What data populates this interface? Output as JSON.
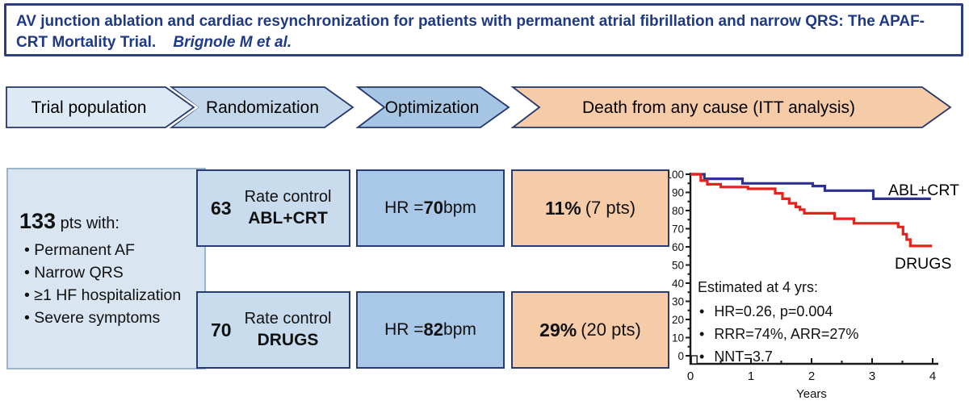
{
  "title": {
    "text": "AV junction ablation and cardiac resynchronization for patients with permanent atrial fibrillation and narrow QRS: The APAF-CRT Mortality Trial.",
    "author": "Brignole M et al."
  },
  "steps": [
    {
      "label": "Trial population"
    },
    {
      "label": "Randomization"
    },
    {
      "label": "Optimization"
    },
    {
      "label": "Death from any cause (ITT analysis)"
    }
  ],
  "population": {
    "count": "133",
    "suffix": " pts with:",
    "bullets": [
      "Permanent AF",
      "Narrow QRS",
      "≥1 HF hospitalization",
      "Severe symptoms"
    ]
  },
  "arms": [
    {
      "n": "63",
      "line1": "Rate control",
      "line2": "ABL+CRT",
      "hr_prefix": "HR = ",
      "hr_value": "70",
      "hr_suffix": " bpm",
      "outcome_pct": "11%",
      "outcome_detail": "(7 pts)"
    },
    {
      "n": "70",
      "line1": "Rate control",
      "line2": "DRUGS",
      "hr_prefix": "HR = ",
      "hr_value": "82",
      "hr_suffix": " bpm",
      "outcome_pct": "29%",
      "outcome_detail": "(20 pts)"
    }
  ],
  "chart_data": {
    "type": "line",
    "subtype": "kaplan-meier-step",
    "title": "Death from any cause (ITT analysis)",
    "xlabel": "Years",
    "ylabel": "",
    "xlim": [
      0,
      4
    ],
    "ylim": [
      0,
      100
    ],
    "x_ticks": [
      0,
      1,
      2,
      3,
      4
    ],
    "x_minor_step": 0.5,
    "y_ticks": [
      0,
      10,
      20,
      30,
      40,
      50,
      60,
      70,
      80,
      90,
      100
    ],
    "y_minor_step": 5,
    "grid": false,
    "legend_position": "inline-labels",
    "series": [
      {
        "name": "ABL+CRT",
        "color": "#2e3192",
        "step_points": [
          [
            0,
            100
          ],
          [
            0.23,
            97.5
          ],
          [
            0.86,
            95
          ],
          [
            2.02,
            93.5
          ],
          [
            2.22,
            91
          ],
          [
            3.02,
            86.5
          ],
          [
            3.97,
            86.5
          ]
        ]
      },
      {
        "name": "DRUGS",
        "color": "#e8211d",
        "step_points": [
          [
            0,
            100
          ],
          [
            0.17,
            96.5
          ],
          [
            0.28,
            94.5
          ],
          [
            0.5,
            93
          ],
          [
            0.95,
            92
          ],
          [
            1.4,
            89.5
          ],
          [
            1.52,
            86.5
          ],
          [
            1.63,
            84
          ],
          [
            1.74,
            82
          ],
          [
            1.81,
            80.5
          ],
          [
            1.88,
            78.5
          ],
          [
            2.38,
            75.5
          ],
          [
            2.7,
            73
          ],
          [
            3.43,
            71
          ],
          [
            3.51,
            67
          ],
          [
            3.57,
            64
          ],
          [
            3.63,
            60.5
          ],
          [
            3.99,
            60.5
          ]
        ]
      }
    ],
    "annotation": {
      "title": "Estimated at 4 yrs:",
      "bullets": [
        "HR=0.26, p=0.004",
        "RRR=74%, ARR=27%",
        "NNT=3.7"
      ]
    }
  },
  "colors": {
    "title_text": "#1e3a87",
    "title_border": "#2c3e80",
    "chevron1": "#dde9f5",
    "chevron2": "#c4d8ec",
    "chevron3": "#a6c5e3",
    "chevron4": "#f6cba7",
    "chevron_border": "#23366e",
    "box_border": "#273c72",
    "population_fill": "#d9e5f1",
    "population_border": "#9db4c9",
    "arm_fill": "#c8dcee",
    "hr_fill": "#a9c7e6",
    "outcome_fill": "#f6cba7",
    "abl_crt_line": "#2e3192",
    "drugs_line": "#e8211d",
    "axis": "#1a1a1a"
  }
}
